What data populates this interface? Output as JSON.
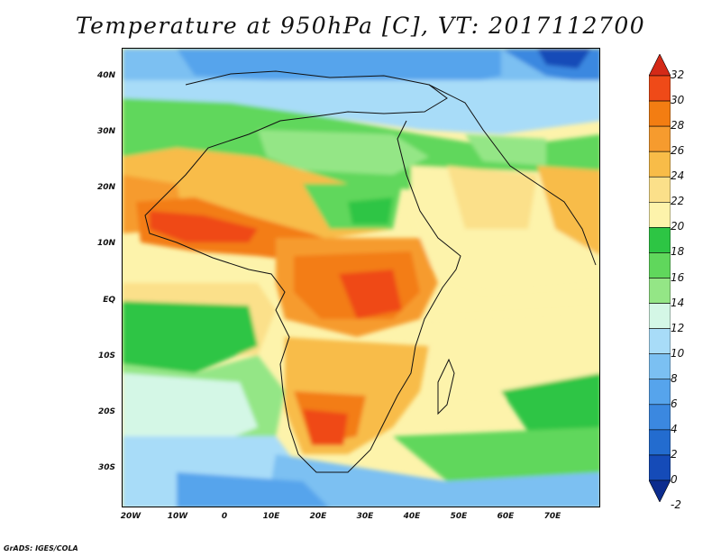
{
  "title": "Temperature at 950hPa [C], VT: 2017112700",
  "credit": "GrADS: IGES/COLA",
  "map": {
    "lat_ticks": [
      "40N",
      "30N",
      "20N",
      "10N",
      "EQ",
      "10S",
      "20S",
      "30S"
    ],
    "lon_ticks": [
      "20W",
      "10W",
      "0",
      "10E",
      "20E",
      "30E",
      "40E",
      "50E",
      "60E",
      "70E"
    ]
  },
  "colorbar": {
    "labels": [
      "32",
      "30",
      "28",
      "26",
      "24",
      "22",
      "20",
      "18",
      "16",
      "14",
      "12",
      "10",
      "8",
      "6",
      "4",
      "2",
      "0",
      "-2"
    ],
    "colors": [
      "#d42a18",
      "#ef4a18",
      "#f37d12",
      "#f69b2e",
      "#f8bc48",
      "#fbe08a",
      "#fdf3ab",
      "#2dc544",
      "#60d75c",
      "#94e686",
      "#d4f7e6",
      "#a8dcf8",
      "#7bc0f2",
      "#56a4ec",
      "#3b88e0",
      "#236ccf",
      "#154bb8",
      "#0c2c8e"
    ]
  }
}
